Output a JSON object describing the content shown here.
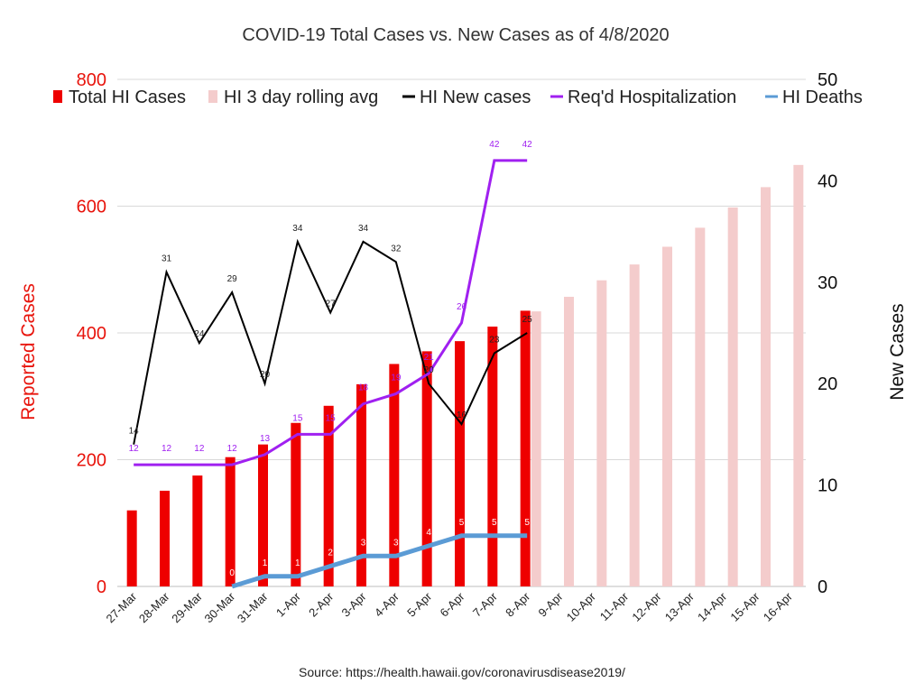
{
  "chart_data": {
    "type": "bar",
    "title": "COVID-19 Total Cases vs. New Cases as of 4/8/2020",
    "source": "Source: https://health.hawaii.gov/coronavirusdisease2019/",
    "ylabel_left": "Reported Cases",
    "ylabel_right": "New Cases",
    "ylim_left": [
      0,
      800
    ],
    "ylim_right": [
      0,
      50
    ],
    "yticks_left": [
      0,
      200,
      400,
      600,
      800
    ],
    "yticks_right": [
      0,
      10,
      20,
      30,
      40,
      50
    ],
    "grid": true,
    "legend_position": "top",
    "categories": [
      "27-Mar",
      "28-Mar",
      "29-Mar",
      "30-Mar",
      "31-Mar",
      "1-Apr",
      "2-Apr",
      "3-Apr",
      "4-Apr",
      "5-Apr",
      "6-Apr",
      "7-Apr",
      "8-Apr",
      "9-Apr",
      "10-Apr",
      "11-Apr",
      "12-Apr",
      "13-Apr",
      "14-Apr",
      "15-Apr",
      "16-Apr"
    ],
    "series": [
      {
        "name": "Total HI Cases",
        "type": "bar",
        "axis": "left",
        "color": "#ee0000",
        "values": [
          120,
          151,
          175,
          204,
          224,
          258,
          285,
          319,
          351,
          371,
          387,
          410,
          435,
          null,
          null,
          null,
          null,
          null,
          null,
          null,
          null
        ]
      },
      {
        "name": "HI 3 day rolling avg",
        "type": "bar",
        "axis": "left",
        "color": "#f4cccc",
        "values": [
          null,
          null,
          null,
          null,
          null,
          null,
          null,
          null,
          null,
          null,
          null,
          null,
          434,
          457,
          483,
          508,
          536,
          566,
          598,
          630,
          665
        ]
      },
      {
        "name": "HI New cases",
        "type": "line",
        "axis": "right",
        "color": "#000000",
        "values": [
          14,
          31,
          24,
          29,
          20,
          34,
          27,
          34,
          32,
          20,
          16,
          23,
          25,
          null,
          null,
          null,
          null,
          null,
          null,
          null,
          null
        ]
      },
      {
        "name": "Req'd Hospitalization",
        "type": "line",
        "axis": "right",
        "color": "#a020f0",
        "values": [
          12,
          12,
          12,
          12,
          13,
          15,
          15,
          18,
          19,
          21,
          26,
          42,
          42,
          null,
          null,
          null,
          null,
          null,
          null,
          null,
          null
        ]
      },
      {
        "name": "HI Deaths",
        "type": "line",
        "axis": "right",
        "color": "#5b9bd5",
        "values": [
          null,
          null,
          null,
          0,
          1,
          1,
          2,
          3,
          3,
          4,
          5,
          5,
          5,
          null,
          null,
          null,
          null,
          null,
          null,
          null,
          null
        ]
      }
    ]
  }
}
